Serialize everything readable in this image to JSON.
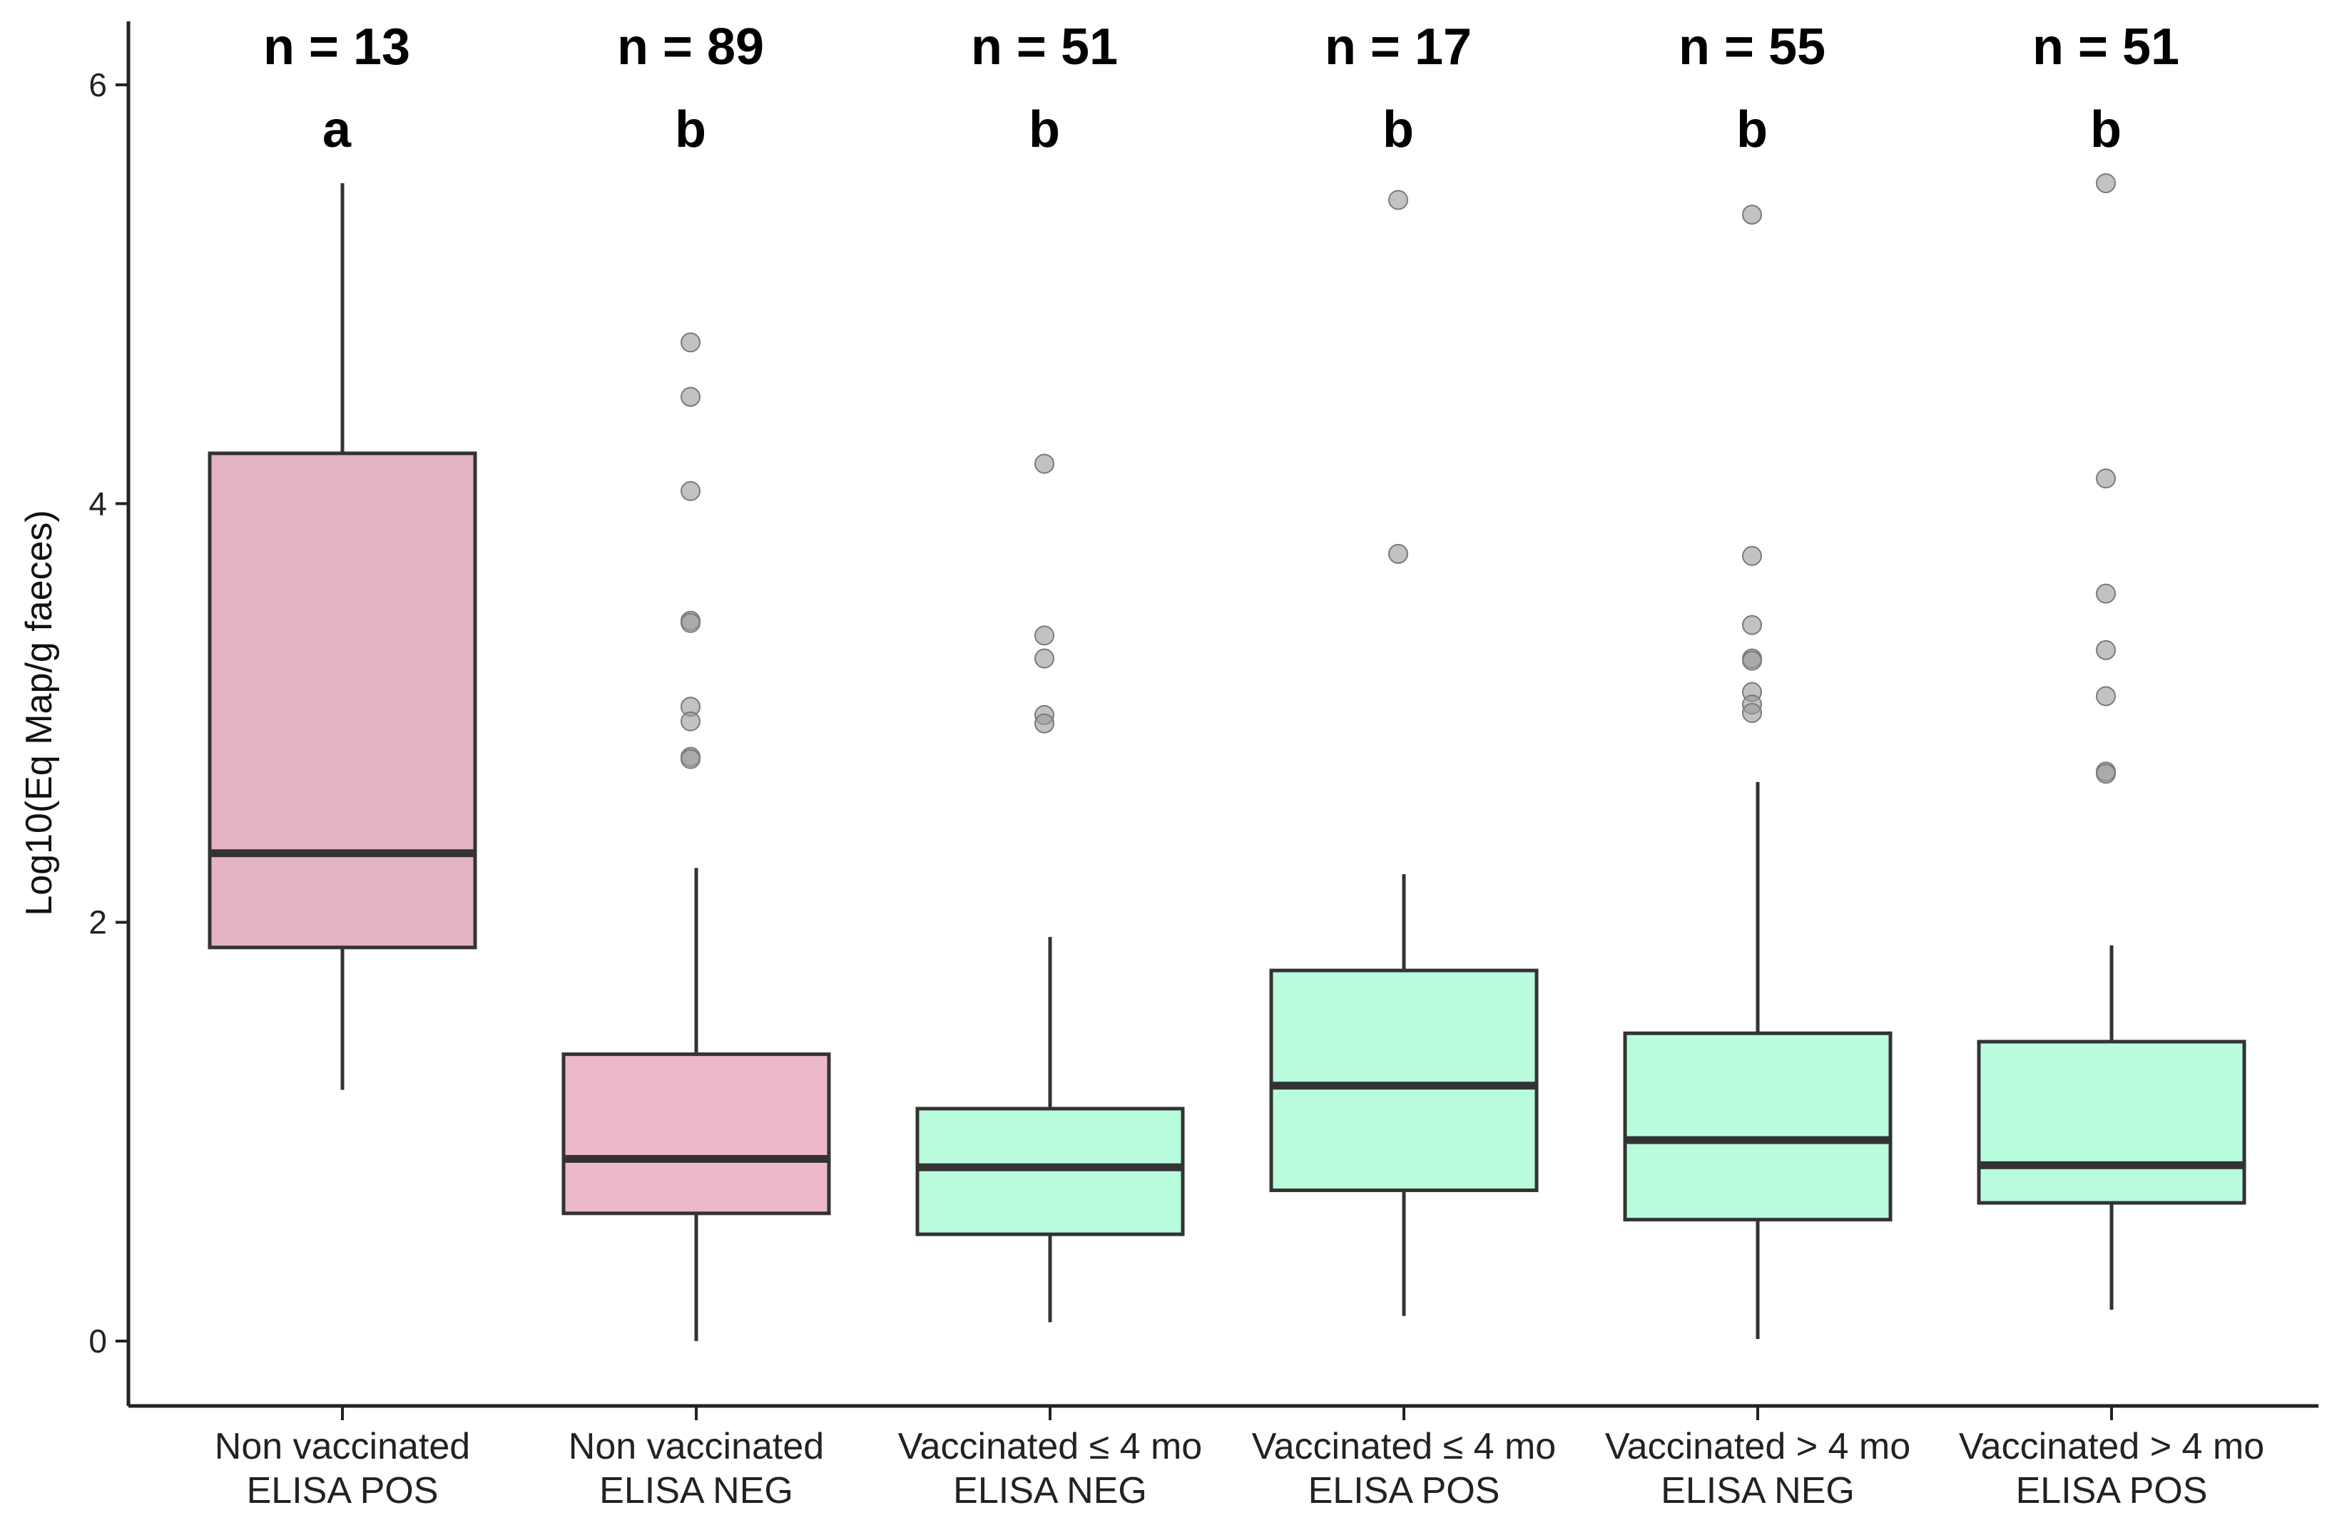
{
  "chart_data": {
    "type": "boxplot",
    "ylabel": "Log10(Eq Map/g faeces)",
    "xlabel": "",
    "ylim": [
      -0.18,
      6.3
    ],
    "yticks": [
      0,
      2,
      4,
      6
    ],
    "grid": false,
    "legend": "none",
    "groups": [
      {
        "label_line1": "Non vaccinated",
        "label_line2": "ELISA POS",
        "n_label": "n = 13",
        "letter": "a",
        "color": "#e4b3c2",
        "min": 1.2,
        "q1": 1.88,
        "median": 2.33,
        "q3": 4.24,
        "max": 5.53,
        "outliers": []
      },
      {
        "label_line1": "Non vaccinated",
        "label_line2": "ELISA NEG",
        "n_label": "n = 89",
        "letter": "b",
        "color": "#edb8ca",
        "min": 0.0,
        "q1": 0.61,
        "median": 0.87,
        "q3": 1.37,
        "max": 2.26,
        "outliers": [
          4.77,
          4.51,
          4.06,
          3.44,
          3.43,
          3.03,
          2.96,
          2.79,
          2.78
        ]
      },
      {
        "label_line1": "Vaccinated ≤ 4 mo",
        "label_line2": "ELISA NEG",
        "n_label": "n = 51",
        "letter": "b",
        "color": "#b9fcdd",
        "min": 0.09,
        "q1": 0.51,
        "median": 0.83,
        "q3": 1.11,
        "max": 1.93,
        "outliers": [
          4.19,
          3.37,
          3.26,
          2.99,
          2.95
        ]
      },
      {
        "label_line1": "Vaccinated ≤ 4 mo",
        "label_line2": "ELISA POS",
        "n_label": "n = 17",
        "letter": "b",
        "color": "#b9fcdd",
        "min": 0.12,
        "q1": 0.72,
        "median": 1.22,
        "q3": 1.77,
        "max": 2.23,
        "outliers": [
          5.45,
          3.76
        ]
      },
      {
        "label_line1": "Vaccinated > 4 mo",
        "label_line2": "ELISA NEG",
        "n_label": "n = 55",
        "letter": "b",
        "color": "#b9fcdd",
        "min": 0.01,
        "q1": 0.58,
        "median": 0.96,
        "q3": 1.47,
        "max": 2.67,
        "outliers": [
          5.38,
          3.75,
          3.42,
          3.26,
          3.25,
          3.1,
          3.04,
          3.0
        ]
      },
      {
        "label_line1": "Vaccinated > 4 mo",
        "label_line2": "ELISA POS",
        "n_label": "n = 51",
        "letter": "b",
        "color": "#b9fcdd",
        "min": 0.15,
        "q1": 0.66,
        "median": 0.84,
        "q3": 1.43,
        "max": 1.89,
        "outliers": [
          5.53,
          4.12,
          3.57,
          3.3,
          3.08,
          2.72,
          2.71
        ]
      }
    ]
  },
  "colors": {
    "axis": "#222222",
    "box_stroke": "#333333",
    "median": "#333333",
    "outlier_fill": "#9a9a9a",
    "outlier_stroke": "#7a7a7a"
  }
}
